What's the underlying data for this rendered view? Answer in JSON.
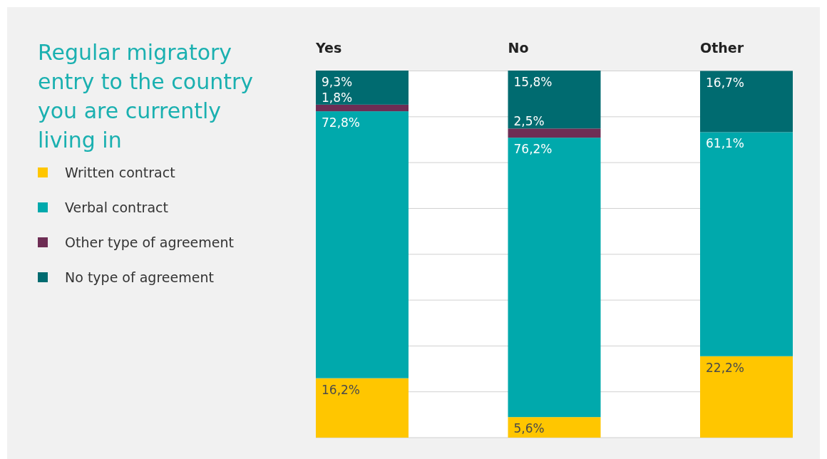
{
  "chart_data": {
    "type": "bar",
    "title": "Regular migratory entry to the country you are currently living in",
    "categories": [
      "Yes",
      "No",
      "Other"
    ],
    "stacked": true,
    "legend": "left",
    "grid": "y",
    "tick_labels": "x",
    "ylim": [
      0,
      100.1
    ],
    "yticks": [
      {
        "value": 0,
        "label": null
      },
      {
        "value": 12.5,
        "label": null
      },
      {
        "value": 25,
        "label": null
      },
      {
        "value": 37.5,
        "label": null
      },
      {
        "value": 50,
        "label": null
      },
      {
        "value": 62.5,
        "label": null
      },
      {
        "value": 75,
        "label": null
      },
      {
        "value": 87.5,
        "label": null
      },
      {
        "value": 100,
        "label": null
      }
    ],
    "series": [
      {
        "name": "Written contract",
        "color": "#ffc600",
        "values": [
          16.2,
          5.6,
          22.2
        ],
        "value_labels": [
          "16,2%",
          "5,6%",
          "22,2%"
        ]
      },
      {
        "name": "Verbal contract",
        "color": "#00a9ac",
        "values": [
          72.8,
          76.2,
          61.1
        ],
        "value_labels": [
          "72,8%",
          "76,2%",
          "61,1%"
        ]
      },
      {
        "name": "Other type of agreement",
        "color": "#6e2d54",
        "values": [
          1.8,
          2.5,
          null
        ],
        "value_labels": [
          "1,8%",
          "2,5%",
          null
        ]
      },
      {
        "name": "No type of agreement",
        "color": "#006b70",
        "values": [
          9.3,
          15.8,
          16.7
        ],
        "value_labels": [
          "9,3%",
          "15,8%",
          "16,7%"
        ]
      }
    ]
  }
}
